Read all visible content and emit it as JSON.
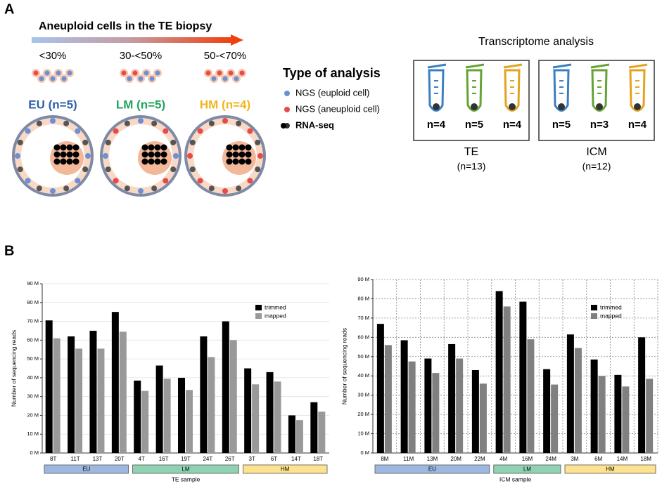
{
  "panel_a": {
    "label": "A",
    "gradient_title": "Aneuploid cells in the TE biopsy",
    "groups": [
      {
        "range": "<30%",
        "name": "EU (n=5)",
        "color": "#2f5fa8"
      },
      {
        "range": "30-<50%",
        "name": "LM (n=5)",
        "color": "#22a45a"
      },
      {
        "range": "50-<70%",
        "name": "HM (n=4)",
        "color": "#f2b51c"
      }
    ],
    "legend_title": "Type of analysis",
    "legend": [
      "NGS (euploid cell)",
      "NGS (aneuploid cell)",
      "RNA-seq"
    ],
    "transcriptome_title": "Transcriptome analysis",
    "boxes": [
      {
        "name": "TE",
        "total": "(n=13)",
        "tubes": [
          "n=4",
          "n=5",
          "n=4"
        ]
      },
      {
        "name": "ICM",
        "total": "(n=12)",
        "tubes": [
          "n=5",
          "n=3",
          "n=4"
        ]
      }
    ]
  },
  "panel_b": {
    "label": "B"
  },
  "chart_data": [
    {
      "type": "bar",
      "ylabel": "Number of sequencing reads",
      "xlabel": "TE sample",
      "grid": true,
      "vgrid": false,
      "categories": [
        "8T",
        "11T",
        "13T",
        "20T",
        "4T",
        "16T",
        "19T",
        "24T",
        "26T",
        "3T",
        "6T",
        "14T",
        "18T"
      ],
      "series": [
        {
          "name": "trimmed",
          "color": "#000000",
          "values": [
            70.5,
            62,
            65,
            75,
            38.5,
            46.5,
            40,
            62,
            70,
            45,
            43,
            20,
            27
          ]
        },
        {
          "name": "mapped",
          "color": "#999999",
          "values": [
            61,
            55.5,
            55.5,
            64.5,
            33,
            39.5,
            33.5,
            51,
            60,
            36.5,
            38,
            17.5,
            22
          ]
        }
      ],
      "groups": [
        {
          "name": "EU",
          "size": 4,
          "color": "#9db8de"
        },
        {
          "name": "LM",
          "size": 5,
          "color": "#8fd1b1"
        },
        {
          "name": "HM",
          "size": 4,
          "color": "#fde38f"
        }
      ],
      "ylim": [
        0,
        90
      ],
      "yticks": [
        {
          "value": 0,
          "label": "0 M"
        },
        {
          "value": 10,
          "label": "10 M"
        },
        {
          "value": 20,
          "label": "20 M"
        },
        {
          "value": 30,
          "label": "30 M"
        },
        {
          "value": 40,
          "label": "40 M"
        },
        {
          "value": 50,
          "label": "50 M"
        },
        {
          "value": 60,
          "label": "60 M"
        },
        {
          "value": 70,
          "label": "70 M"
        },
        {
          "value": 80,
          "label": "80 M"
        },
        {
          "value": 90,
          "label": "90 M"
        }
      ]
    },
    {
      "type": "bar",
      "ylabel": "Number of sequencing reads",
      "xlabel": "ICM sample",
      "grid": true,
      "vgrid": true,
      "categories": [
        "8M",
        "11M",
        "13M",
        "20M",
        "22M",
        "4M",
        "16M",
        "24M",
        "3M",
        "6M",
        "14M",
        "18M"
      ],
      "series": [
        {
          "name": "trimmed",
          "color": "#000000",
          "values": [
            67,
            58.5,
            49,
            56.5,
            43,
            84,
            78.5,
            43.5,
            61.5,
            48.5,
            40.5,
            60
          ]
        },
        {
          "name": "mapped",
          "color": "#808080",
          "values": [
            56,
            47.5,
            41.5,
            49,
            36,
            76,
            59,
            35.5,
            54.5,
            40,
            34.5,
            38.5
          ]
        }
      ],
      "groups": [
        {
          "name": "EU",
          "size": 5,
          "color": "#9db8de"
        },
        {
          "name": "LM",
          "size": 3,
          "color": "#8fd1b1"
        },
        {
          "name": "HM",
          "size": 4,
          "color": "#fde38f"
        }
      ],
      "ylim": [
        0,
        90
      ],
      "yticks": [
        {
          "value": 0,
          "label": "0 M"
        },
        {
          "value": 10,
          "label": "10 M"
        },
        {
          "value": 20,
          "label": "20 M"
        },
        {
          "value": 30,
          "label": "30 M"
        },
        {
          "value": 40,
          "label": "40 M"
        },
        {
          "value": 50,
          "label": "50 M"
        },
        {
          "value": 60,
          "label": "60 M"
        },
        {
          "value": 70,
          "label": "70 M"
        },
        {
          "value": 80,
          "label": "80 M"
        },
        {
          "value": 90,
          "label": "90 M"
        }
      ]
    }
  ]
}
